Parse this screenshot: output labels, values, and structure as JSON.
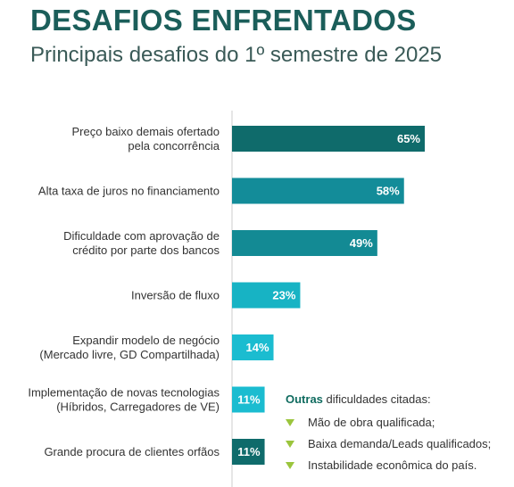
{
  "header": {
    "title": "DESAFIOS ENFRENTADOS",
    "subtitle": "Principais desafios do 1º semestre de 2025"
  },
  "chart_data": {
    "type": "bar",
    "orientation": "horizontal",
    "title": "",
    "xlabel": "",
    "ylabel": "",
    "xlim": [
      0,
      100
    ],
    "grid": false,
    "categories": [
      [
        "Preço baixo demais ofertado",
        "pela concorrência"
      ],
      [
        "Alta taxa de juros no financiamento"
      ],
      [
        "Dificuldade com aprovação de",
        "crédito por parte dos bancos"
      ],
      [
        "Inversão de fluxo"
      ],
      [
        "Expandir modelo de negócio",
        "(Mercado livre, GD Compartilhada)"
      ],
      [
        "Implementação de novas tecnologias",
        "(Híbridos, Carregadores de VE)"
      ],
      [
        "Grande procura de clientes orfãos"
      ]
    ],
    "values": [
      65,
      58,
      49,
      23,
      14,
      11,
      11
    ],
    "value_labels": [
      "65%",
      "58%",
      "49%",
      "23%",
      "14%",
      "11%",
      "11%"
    ],
    "colors": [
      "#0f6b6b",
      "#138c99",
      "#138a94",
      "#17b3c4",
      "#1bbcd0",
      "#1bbcd0",
      "#0f6b6b"
    ]
  },
  "others": {
    "heading_bold": "Outras",
    "heading_rest": " dificuldades citadas:",
    "items": [
      "Mão de obra qualificada;",
      "Baixa demanda/Leads qualificados;",
      "Instabilidade econômica do país."
    ],
    "bullet_color": "#9bc53d"
  }
}
